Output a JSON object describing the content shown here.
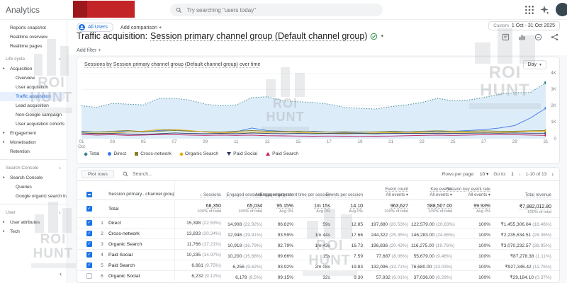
{
  "colors": {
    "accent": "#1a73e8",
    "selected_bg": "#e8f0fe",
    "green_check": "#1e8e3e",
    "redaction": "#c32428"
  },
  "icons": {
    "caret_down": "▾",
    "plus": "+",
    "sort_desc": "↓",
    "item_arrow": "▸",
    "section_collapse": "∧",
    "chevron_left": "‹",
    "chevron_right": "›",
    "drawer_collapse": "‹",
    "check": "✓"
  },
  "watermark": {
    "line1": "ROI",
    "line2": "HUNT"
  },
  "topbar": {
    "brand": "Analytics",
    "search_placeholder": "Try searching \"users today\""
  },
  "date_range": {
    "label": "Custom",
    "value": "1 Oct - 31 Oct 2025"
  },
  "chips": {
    "audience": "All Users",
    "add_comparison": "Add comparison +"
  },
  "page": {
    "title_prefix": "Traffic acquisition:",
    "title_dimension": "Session primary channel group (Default channel group)",
    "add_filter": "Add filter +"
  },
  "sidebar": {
    "entries": [
      {
        "type": "item",
        "label": "Reports snapshot",
        "lvl": 1
      },
      {
        "type": "item",
        "label": "Realtime overview",
        "lvl": 1
      },
      {
        "type": "item",
        "label": "Realtime pages",
        "lvl": 1
      },
      {
        "type": "header",
        "label": "Life cycle"
      },
      {
        "type": "item",
        "label": "Acquisition",
        "lvl": 0,
        "arrow": true
      },
      {
        "type": "item",
        "label": "Overview",
        "lvl": 2
      },
      {
        "type": "item",
        "label": "User acquisition",
        "lvl": 2
      },
      {
        "type": "item",
        "label": "Traffic acquisition",
        "lvl": 2,
        "selected": true
      },
      {
        "type": "item",
        "label": "Lead acquisition",
        "lvl": 2
      },
      {
        "type": "item",
        "label": "Non-Google campaign",
        "lvl": 2
      },
      {
        "type": "item",
        "label": "User acquisition cohorts",
        "lvl": 2
      },
      {
        "type": "item",
        "label": "Engagement",
        "lvl": 0,
        "arrow": true
      },
      {
        "type": "item",
        "label": "Monetisation",
        "lvl": 0,
        "arrow": true
      },
      {
        "type": "item",
        "label": "Retention",
        "lvl": 1
      },
      {
        "type": "divider"
      },
      {
        "type": "header",
        "label": "Search Console"
      },
      {
        "type": "item",
        "label": "Search Console",
        "lvl": 0,
        "arrow": true
      },
      {
        "type": "item",
        "label": "Queries",
        "lvl": 2
      },
      {
        "type": "item",
        "label": "Google organic search traf...",
        "lvl": 2
      },
      {
        "type": "divider"
      },
      {
        "type": "header",
        "label": "User"
      },
      {
        "type": "item",
        "label": "User attributes",
        "lvl": 0,
        "arrow": true
      },
      {
        "type": "item",
        "label": "Tech",
        "lvl": 0,
        "arrow": true
      }
    ]
  },
  "chart_data": {
    "type": "line",
    "title": "Sessions by Session primary channel group (Default channel group) over time",
    "interval_label": "Day",
    "x_unit": "day of October 2025",
    "xticks": [
      "01",
      "03",
      "05",
      "07",
      "09",
      "11",
      "13",
      "15",
      "17",
      "19",
      "21",
      "23",
      "25",
      "27",
      "29",
      "31"
    ],
    "xtick_first_sub": "Oct",
    "ylim": [
      0,
      4000
    ],
    "yticks": [
      "0",
      "1K",
      "2K",
      "3K",
      "4K"
    ],
    "grid": "horizontal",
    "legend_position": "bottom",
    "series": [
      {
        "name": "Total",
        "color": "#35808d",
        "style": "dotted-area",
        "marker": "diamond",
        "fill": "#ddecf9",
        "values": [
          2000,
          1900,
          2150,
          2100,
          2050,
          2450,
          2450,
          2350,
          2100,
          2000,
          2050,
          2500,
          2550,
          2300,
          2250,
          2200,
          2100,
          1900,
          1850,
          1800,
          1950,
          2050,
          2200,
          2450,
          2300,
          2350,
          2500,
          2700,
          2800,
          2800,
          3400
        ]
      },
      {
        "name": "Direct",
        "color": "#3b78e7",
        "marker": "circle",
        "values": [
          450,
          400,
          450,
          420,
          400,
          500,
          550,
          450,
          420,
          400,
          420,
          650,
          500,
          450,
          420,
          450,
          400,
          380,
          350,
          330,
          400,
          420,
          450,
          420,
          450,
          500,
          550,
          650,
          800,
          1250,
          1850
        ]
      },
      {
        "name": "Cross-network",
        "color": "#7f802a",
        "marker": "square",
        "values": [
          420,
          400,
          450,
          500,
          420,
          450,
          500,
          450,
          420,
          400,
          450,
          500,
          450,
          420,
          450,
          420,
          400,
          420,
          400,
          420,
          450,
          420,
          450,
          480,
          450,
          450,
          480,
          450,
          450,
          480,
          500
        ]
      },
      {
        "name": "Organic Search",
        "color": "#e8a602",
        "marker": "diamond",
        "values": [
          350,
          330,
          350,
          400,
          450,
          550,
          550,
          500,
          400,
          350,
          380,
          400,
          380,
          400,
          380,
          350,
          330,
          350,
          330,
          350,
          380,
          350,
          380,
          400,
          380,
          380,
          400,
          380,
          400,
          450,
          450
        ]
      },
      {
        "name": "Paid Social",
        "color": "#273a60",
        "marker": "triangle-down",
        "values": [
          350,
          300,
          320,
          280,
          250,
          300,
          350,
          320,
          300,
          320,
          300,
          350,
          320,
          300,
          320,
          300,
          320,
          300,
          320,
          300,
          320,
          330,
          320,
          330,
          320,
          330,
          350,
          330,
          350,
          330,
          330
        ]
      },
      {
        "name": "Paid Search",
        "color": "#c2185b",
        "marker": "triangle-up",
        "values": [
          250,
          220,
          240,
          200,
          220,
          250,
          240,
          220,
          200,
          220,
          200,
          220,
          180,
          170,
          160,
          150,
          160,
          150,
          140,
          150,
          160,
          180,
          200,
          220,
          200,
          220,
          240,
          250,
          240,
          220,
          200
        ]
      }
    ]
  },
  "table": {
    "plot_rows": "Plot rows",
    "search_placeholder": "Search...",
    "rows_per_page_label": "Rows per page:",
    "rows_per_page_value": "10",
    "goto_label": "Go to:",
    "goto_value": "1",
    "range": "1-10 of 13",
    "dimension_header": "Session primary...channel group)",
    "columns": [
      {
        "label": "Sessions",
        "sort": true
      },
      {
        "label": "Engaged sessions"
      },
      {
        "label": "Engagement rate"
      },
      {
        "label": "Average engagement time per session"
      },
      {
        "label": "Events per session"
      },
      {
        "label": "Event count",
        "sub": "All events"
      },
      {
        "label": "Key events",
        "sub": "All events"
      },
      {
        "label": "Session key event rate",
        "sub": "All events"
      },
      {
        "label": "Total revenue"
      }
    ],
    "totals": {
      "label": "Total",
      "checked": true,
      "cells": [
        {
          "v": "68,350",
          "s": "100% of total"
        },
        {
          "v": "65,034",
          "s": "100% of total"
        },
        {
          "v": "95.15%",
          "s": "Avg 0%"
        },
        {
          "v": "1m 15s",
          "s": "Avg 0%"
        },
        {
          "v": "14.10",
          "s": "Avg 0%"
        },
        {
          "v": "963,627",
          "s": "100% of total"
        },
        {
          "v": "588,507.00",
          "s": "100% of total"
        },
        {
          "v": "99.93%",
          "s": "Avg 0%"
        },
        {
          "v": "₹7,882,012.80",
          "s": "100% of total"
        }
      ]
    },
    "rows": [
      {
        "n": "1",
        "name": "Direct",
        "checked": true,
        "cells": [
          {
            "v": "15,398",
            "p": "(22.53%)"
          },
          {
            "v": "14,908",
            "p": "(22.92%)"
          },
          {
            "v": "96.82%"
          },
          {
            "v": "59s"
          },
          {
            "v": "12.85"
          },
          {
            "v": "197,880",
            "p": "(20.53%)"
          },
          {
            "v": "122,579.00",
            "p": "(20.83%)"
          },
          {
            "v": "100%"
          },
          {
            "v": "₹1,455,306.04",
            "p": "(18.46%)"
          }
        ]
      },
      {
        "n": "2",
        "name": "Cross-network",
        "checked": true,
        "cells": [
          {
            "v": "13,833",
            "p": "(20.24%)"
          },
          {
            "v": "12,946",
            "p": "(19.91%)"
          },
          {
            "v": "93.59%"
          },
          {
            "v": "1m 44s"
          },
          {
            "v": "17.66"
          },
          {
            "v": "244,322",
            "p": "(25.35%)"
          },
          {
            "v": "146,283.00",
            "p": "(24.86%)"
          },
          {
            "v": "100%"
          },
          {
            "v": "₹2,235,634.51",
            "p": "(28.36%)"
          }
        ]
      },
      {
        "n": "3",
        "name": "Organic Search",
        "checked": true,
        "cells": [
          {
            "v": "11,766",
            "p": "(17.21%)"
          },
          {
            "v": "10,918",
            "p": "(16.79%)"
          },
          {
            "v": "92.79%"
          },
          {
            "v": "1m 43s"
          },
          {
            "v": "16.73"
          },
          {
            "v": "196,836",
            "p": "(20.43%)"
          },
          {
            "v": "116,275.00",
            "p": "(19.76%)"
          },
          {
            "v": "100%"
          },
          {
            "v": "₹3,070,232.57",
            "p": "(38.95%)"
          }
        ]
      },
      {
        "n": "4",
        "name": "Paid Social",
        "checked": true,
        "cells": [
          {
            "v": "10,235",
            "p": "(14.97%)"
          },
          {
            "v": "10,200",
            "p": "(15.68%)"
          },
          {
            "v": "99.66%"
          },
          {
            "v": "15s"
          },
          {
            "v": "7.59"
          },
          {
            "v": "77,687",
            "p": "(8.06%)"
          },
          {
            "v": "55,679.00",
            "p": "(9.46%)"
          },
          {
            "v": "100%"
          },
          {
            "v": "₹87,278.38",
            "p": "(1.11%)"
          }
        ]
      },
      {
        "n": "5",
        "name": "Paid Search",
        "checked": true,
        "cells": [
          {
            "v": "6,661",
            "p": "(9.75%)"
          },
          {
            "v": "6,256",
            "p": "(9.62%)"
          },
          {
            "v": "93.92%"
          },
          {
            "v": "2m 08s"
          },
          {
            "v": "19.83"
          },
          {
            "v": "132,096",
            "p": "(13.71%)"
          },
          {
            "v": "76,680.00",
            "p": "(13.03%)"
          },
          {
            "v": "100%"
          },
          {
            "v": "₹927,346.42",
            "p": "(11.76%)"
          }
        ]
      },
      {
        "n": "6",
        "name": "Organic Social",
        "checked": false,
        "cells": [
          {
            "v": "6,232",
            "p": "(9.12%)"
          },
          {
            "v": "6,179",
            "p": "(9.5%)"
          },
          {
            "v": "99.15%"
          },
          {
            "v": "32s"
          },
          {
            "v": "9.30"
          },
          {
            "v": "57,932",
            "p": "(6.01%)"
          },
          {
            "v": "37,036.00",
            "p": "(6.29%)"
          },
          {
            "v": "100%"
          },
          {
            "v": "₹29,184.10",
            "p": "(0.37%)"
          }
        ]
      }
    ]
  }
}
